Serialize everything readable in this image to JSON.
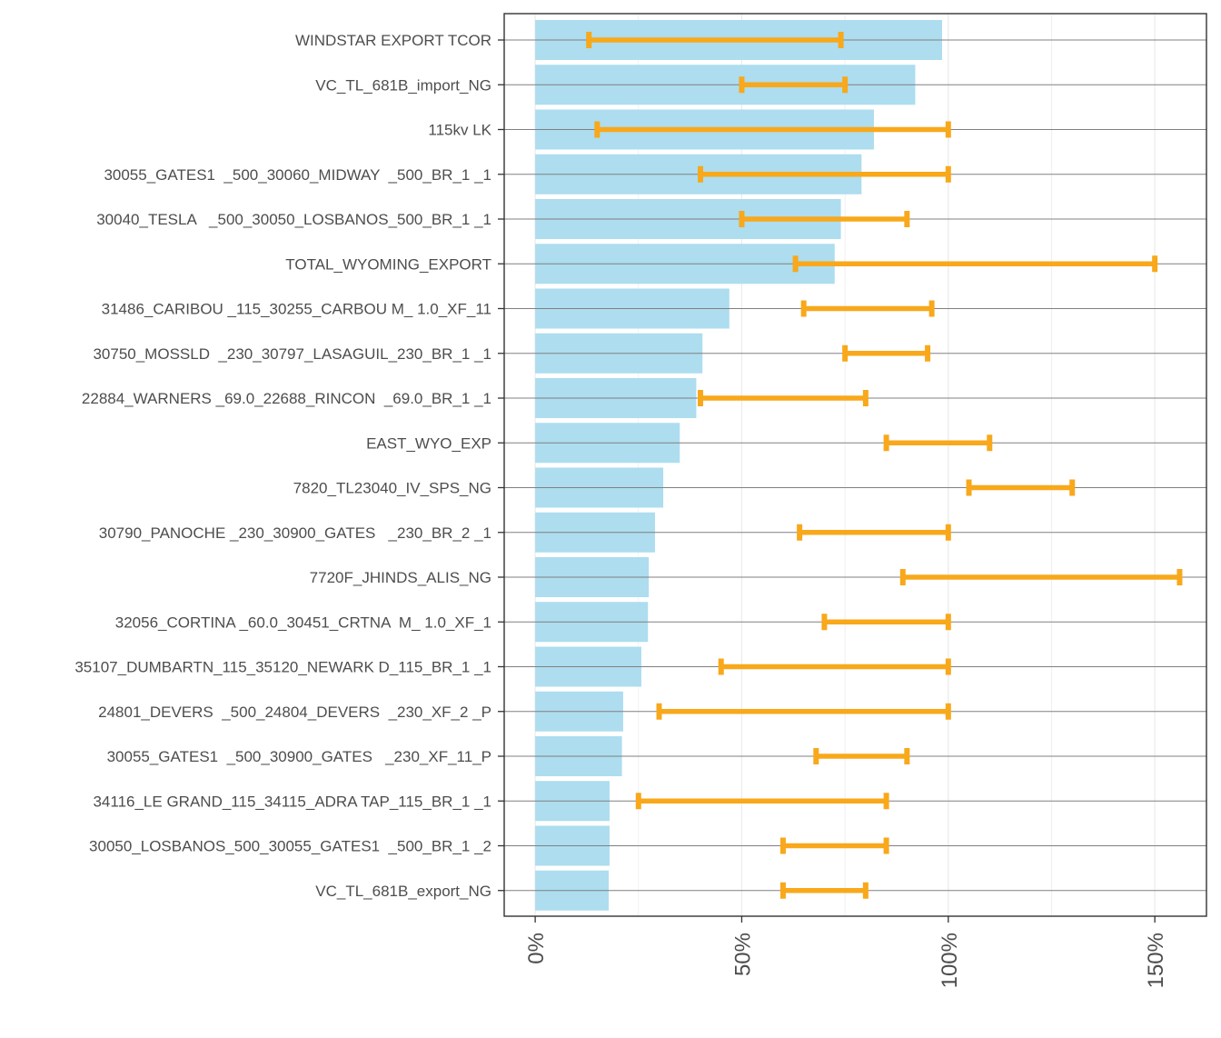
{
  "chart_data": {
    "type": "bar",
    "orientation": "horizontal",
    "title": "",
    "xlabel": "",
    "ylabel": "",
    "xlim": [
      -7.5,
      162.5
    ],
    "x_ticks": [
      0,
      50,
      100,
      150
    ],
    "x_tick_labels": [
      "0%",
      "50%",
      "100%",
      "150%"
    ],
    "grid": true,
    "legend": "none",
    "colors": {
      "bar": "#ADDDEF",
      "range": "#F8A81A",
      "axis": "#333333",
      "row_line": "#808080",
      "grid": "#EBEBEB",
      "tick_text": "#4D4D4D"
    },
    "categories": [
      "WINDSTAR EXPORT TCOR",
      "VC_TL_681B_import_NG",
      "115kv LK",
      "30055_GATES1  _500_30060_MIDWAY  _500_BR_1 _1",
      "30040_TESLA   _500_30050_LOSBANOS_500_BR_1 _1",
      "TOTAL_WYOMING_EXPORT",
      "31486_CARIBOU _115_30255_CARBOU M_ 1.0_XF_11",
      "30750_MOSSLD  _230_30797_LASAGUIL_230_BR_1 _1",
      "22884_WARNERS _69.0_22688_RINCON  _69.0_BR_1 _1",
      "EAST_WYO_EXP",
      "7820_TL23040_IV_SPS_NG",
      "30790_PANOCHE _230_30900_GATES   _230_BR_2 _1",
      "7720F_JHINDS_ALIS_NG",
      "32056_CORTINA _60.0_30451_CRTNA  M_ 1.0_XF_1",
      "35107_DUMBARTN_115_35120_NEWARK D_115_BR_1 _1",
      "24801_DEVERS  _500_24804_DEVERS  _230_XF_2 _P",
      "30055_GATES1  _500_30900_GATES   _230_XF_11_P",
      "34116_LE GRAND_115_34115_ADRA TAP_115_BR_1 _1",
      "30050_LOSBANOS_500_30055_GATES1  _500_BR_1 _2",
      "VC_TL_681B_export_NG"
    ],
    "series": [
      {
        "name": "bar",
        "type": "bar",
        "values": [
          98.5,
          92,
          82,
          79,
          74,
          72.5,
          47,
          40.5,
          39,
          35,
          31,
          29,
          27.5,
          27.3,
          25.7,
          21.3,
          21,
          18,
          18,
          17.8
        ]
      },
      {
        "name": "range",
        "type": "errorbar",
        "low": [
          13,
          50,
          15,
          40,
          50,
          63,
          65,
          75,
          40,
          85,
          105,
          64,
          89,
          70,
          45,
          30,
          68,
          25,
          60,
          60
        ],
        "high": [
          74,
          75,
          100,
          100,
          90,
          150,
          96,
          95,
          80,
          110,
          130,
          100,
          156,
          100,
          100,
          100,
          90,
          85,
          85,
          80
        ]
      }
    ]
  }
}
